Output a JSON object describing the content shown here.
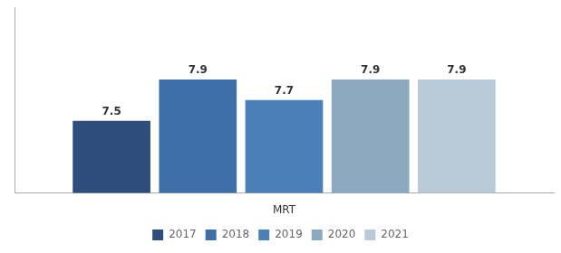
{
  "chart_data": {
    "type": "bar",
    "xlabel": "MRT",
    "categories": [
      null
    ],
    "series": [
      {
        "name": "2017",
        "color": "#2D4D7C",
        "values": [
          7.5
        ]
      },
      {
        "name": "2018",
        "color": "#3E6FA8",
        "values": [
          7.9
        ]
      },
      {
        "name": "2019",
        "color": "#4A7FBA",
        "values": [
          7.7
        ]
      },
      {
        "name": "2020",
        "color": "#8BAABF",
        "values": [
          7.9
        ]
      },
      {
        "name": "2021",
        "color": "#BACAD9",
        "values": [
          7.9
        ]
      }
    ],
    "ylim": [
      6.8,
      8.6
    ],
    "tick_labels": false,
    "grid": false,
    "legend": "bottom",
    "data_labels": true
  }
}
